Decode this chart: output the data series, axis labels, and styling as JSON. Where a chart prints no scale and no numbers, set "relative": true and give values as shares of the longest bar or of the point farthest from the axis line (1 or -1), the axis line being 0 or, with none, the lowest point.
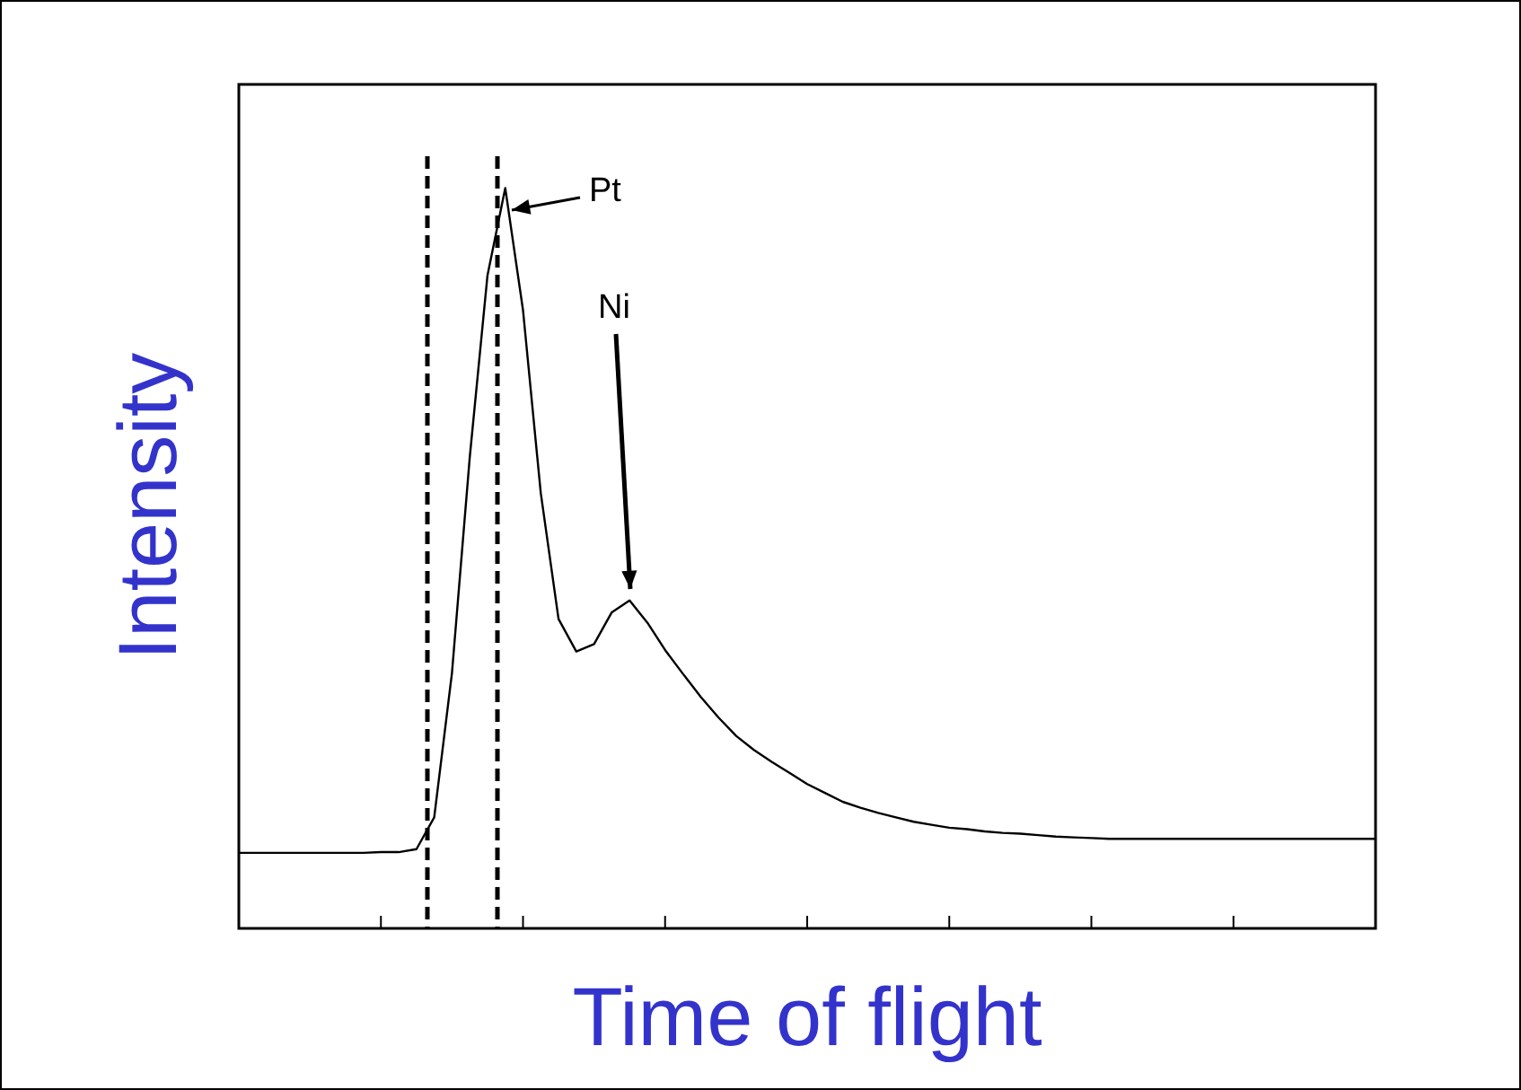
{
  "chart_data": {
    "type": "line",
    "relative": true,
    "xlabel": "Time of flight",
    "ylabel": "Intensity",
    "categories": [
      null,
      null,
      null,
      null,
      null,
      null,
      null,
      null,
      null,
      null,
      null,
      null,
      null,
      null,
      null,
      null,
      null,
      null,
      null,
      null,
      null,
      null,
      null,
      null,
      null,
      null,
      null,
      null,
      null,
      null,
      null,
      null,
      null,
      null,
      null,
      null,
      null,
      null,
      null,
      null,
      null,
      null,
      null,
      null,
      null,
      null,
      null,
      null,
      null,
      null,
      null,
      null,
      null,
      null,
      null,
      null,
      null,
      null,
      null,
      null,
      null,
      null,
      null,
      null,
      null
    ],
    "series": [
      {
        "color": "#000000",
        "values": [
          0.102,
          0.102,
          0.102,
          0.102,
          0.102,
          0.102,
          0.102,
          0.102,
          0.103,
          0.103,
          0.107,
          0.15,
          0.345,
          0.636,
          0.882,
          1,
          0.835,
          0.588,
          0.418,
          0.374,
          0.384,
          0.427,
          0.443,
          0.413,
          0.376,
          0.344,
          0.313,
          0.285,
          0.26,
          0.241,
          0.225,
          0.21,
          0.195,
          0.183,
          0.171,
          0.163,
          0.156,
          0.15,
          0.144,
          0.14,
          0.136,
          0.134,
          0.131,
          0.129,
          0.128,
          0.126,
          0.124,
          0.123,
          0.122,
          0.121,
          0.121,
          0.121,
          0.121,
          0.121,
          0.121,
          0.121,
          0.121,
          0.121,
          0.121,
          0.121,
          0.121,
          0.121,
          0.121,
          0.121,
          0.121
        ]
      }
    ],
    "annotations": [
      "Pt",
      "Ni"
    ],
    "line_style": "solid"
  }
}
